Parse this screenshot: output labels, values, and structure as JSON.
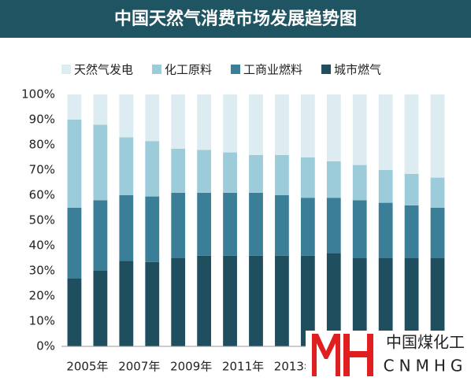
{
  "chart_data": {
    "type": "stacked-bar",
    "title": "中国天然气消费市场发展趋势图",
    "categories": [
      "2005年",
      null,
      "2007年",
      null,
      "2009年",
      null,
      "2011年",
      null,
      "2013年",
      null,
      null,
      null,
      null,
      null,
      null
    ],
    "series": [
      {
        "name": "城市燃气",
        "color": "#1f4e5f",
        "values": [
          27,
          30,
          34,
          33.5,
          35,
          36,
          36,
          36,
          36,
          36,
          37,
          35,
          35,
          35,
          35
        ]
      },
      {
        "name": "工商业燃料",
        "color": "#3a7f97",
        "values": [
          28,
          28,
          26,
          26,
          26,
          25,
          25,
          25,
          24,
          23,
          22,
          23,
          22,
          21,
          20
        ]
      },
      {
        "name": "化工原料",
        "color": "#9ccbd9",
        "values": [
          35,
          30,
          23,
          22,
          17.5,
          17,
          16,
          15,
          16,
          16,
          14.5,
          14,
          13,
          12.5,
          12
        ]
      },
      {
        "name": "天然气发电",
        "color": "#dcecf1",
        "values": [
          10,
          12,
          17,
          18.5,
          21.5,
          22,
          23,
          24,
          24,
          25,
          26.5,
          28,
          30,
          31.5,
          33
        ]
      }
    ],
    "ylim": [
      0,
      100
    ],
    "yticks": [
      {
        "value": 0,
        "label": "0%"
      },
      {
        "value": 10,
        "label": "10%"
      },
      {
        "value": 20,
        "label": "20%"
      },
      {
        "value": 30,
        "label": "30%"
      },
      {
        "value": 40,
        "label": "40%"
      },
      {
        "value": 50,
        "label": "50%"
      },
      {
        "value": 60,
        "label": "60%"
      },
      {
        "value": 70,
        "label": "70%"
      },
      {
        "value": 80,
        "label": "80%"
      },
      {
        "value": 90,
        "label": "90%"
      },
      {
        "value": 100,
        "label": "100%"
      }
    ],
    "watermark": {
      "text": "中国煤化工",
      "subtext": "CNMHG"
    }
  }
}
